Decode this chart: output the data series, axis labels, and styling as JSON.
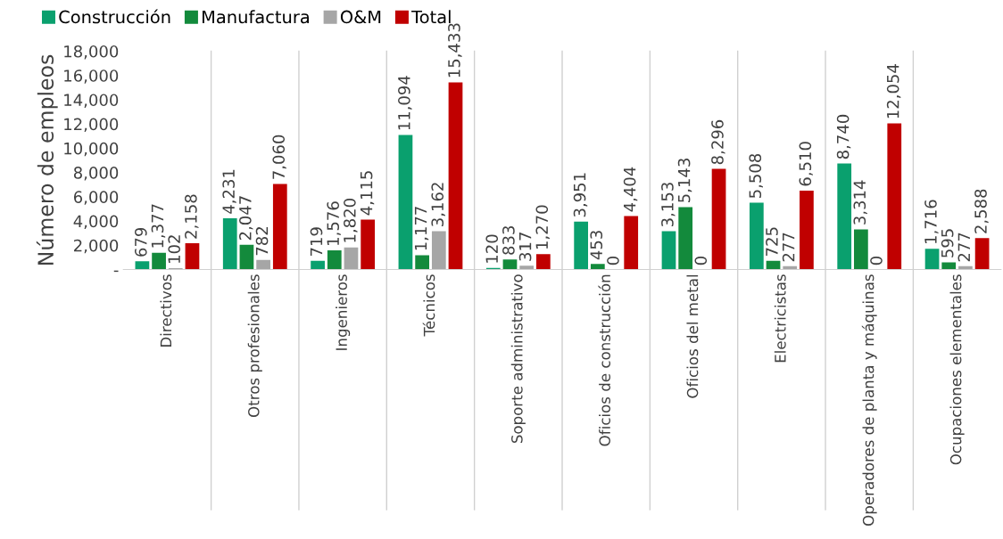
{
  "chart_data": {
    "type": "bar",
    "ylabel": "Número de empleos",
    "categories": [
      "Directivos",
      "Otros profesionales",
      "Ingenieros",
      "Técnicos",
      "Soporte administrativo",
      "Oficios de construcción",
      "Oficios del metal",
      "Electricistas",
      "Operadores de planta y máquinas",
      "Ocupaciones elementales"
    ],
    "series": [
      {
        "name": "Construcción",
        "color": "#0aa06e",
        "values": [
          679,
          4231,
          719,
          11094,
          120,
          3951,
          3153,
          5508,
          8740,
          1716
        ],
        "value_labels": [
          "679",
          "4,231",
          "719",
          "11,094",
          "120",
          "3,951",
          "3,153",
          "5,508",
          "8,740",
          "1,716"
        ]
      },
      {
        "name": "Manufactura",
        "color": "#138a3c",
        "values": [
          1377,
          2047,
          1576,
          1177,
          833,
          453,
          5143,
          725,
          3314,
          595
        ],
        "value_labels": [
          "1,377",
          "2,047",
          "1,576",
          "1,177",
          "833",
          "453",
          "5,143",
          "725",
          "3,314",
          "595"
        ]
      },
      {
        "name": "O&M",
        "color": "#a6a6a6",
        "values": [
          102,
          782,
          1820,
          3162,
          317,
          0,
          0,
          277,
          0,
          277
        ],
        "value_labels": [
          "102",
          "782",
          "1,820",
          "3,162",
          "317",
          "0",
          "0",
          "277",
          "0",
          "277"
        ]
      },
      {
        "name": "Total",
        "color": "#c00000",
        "values": [
          2158,
          7060,
          4115,
          15433,
          1270,
          4404,
          8296,
          6510,
          12054,
          2588
        ],
        "value_labels": [
          "2,158",
          "7,060",
          "4,115",
          "15,433",
          "1,270",
          "4,404",
          "8,296",
          "6,510",
          "12,054",
          "2,588"
        ]
      }
    ],
    "ylim": [
      0,
      18000
    ],
    "yticks": [
      {
        "value": 0,
        "label": "-"
      },
      {
        "value": 2000,
        "label": "2,000"
      },
      {
        "value": 4000,
        "label": "4,000"
      },
      {
        "value": 6000,
        "label": "6,000"
      },
      {
        "value": 8000,
        "label": "8,000"
      },
      {
        "value": 10000,
        "label": "10,000"
      },
      {
        "value": 12000,
        "label": "12,000"
      },
      {
        "value": 14000,
        "label": "14,000"
      },
      {
        "value": 16000,
        "label": "16,000"
      },
      {
        "value": 18000,
        "label": "18,000"
      }
    ],
    "grid": false,
    "legend": "top left"
  }
}
